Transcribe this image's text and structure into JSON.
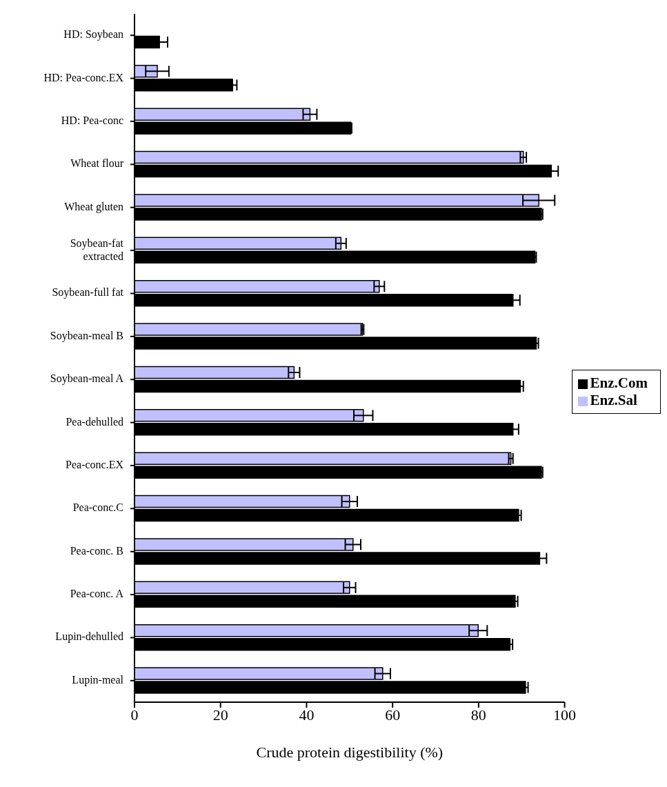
{
  "chart_data": {
    "type": "bar",
    "orientation": "horizontal",
    "xlabel": "Crude protein digestibility (%)",
    "categories": [
      "HD: Soybean",
      "HD: Pea-conc.EX",
      "HD: Pea-conc",
      "Wheat flour",
      "Wheat gluten",
      "Soybean-fat extracted",
      "Soybean-full fat",
      "Soybean-meal B",
      "Soybean-meal A",
      "Pea-dehulled",
      "Pea-conc.EX",
      "Pea-conc.C",
      "Pea-conc. B",
      "Pea-conc. A",
      "Lupin-dehulled",
      "Lupin-meal"
    ],
    "series": [
      {
        "name": "Enz.Sal",
        "color": "#c0c0ff",
        "values": [
          null,
          5.3,
          40.8,
          90.4,
          94.0,
          48.0,
          56.9,
          53.0,
          37.1,
          53.2,
          87.5,
          50.0,
          50.8,
          50.0,
          79.9,
          57.7
        ],
        "errors": [
          null,
          2.7,
          1.6,
          0.7,
          3.7,
          1.2,
          1.2,
          0.3,
          1.3,
          2.2,
          0.5,
          1.8,
          1.8,
          1.4,
          2.1,
          1.8
        ]
      },
      {
        "name": "Enz.Com",
        "color": "#000000",
        "values": [
          5.8,
          22.8,
          50.3,
          96.9,
          94.6,
          93.1,
          88.0,
          93.4,
          89.7,
          88.0,
          94.6,
          89.3,
          94.2,
          88.5,
          87.3,
          90.9
        ],
        "errors": [
          1.9,
          1.0,
          0.2,
          1.6,
          0.3,
          0.3,
          1.6,
          0.5,
          0.7,
          1.3,
          0.3,
          0.6,
          1.6,
          0.6,
          0.6,
          0.6
        ]
      }
    ],
    "xlim": [
      0,
      100
    ],
    "xticks": [
      0,
      20,
      40,
      60,
      80,
      100
    ],
    "grid": false,
    "legend": "right"
  }
}
